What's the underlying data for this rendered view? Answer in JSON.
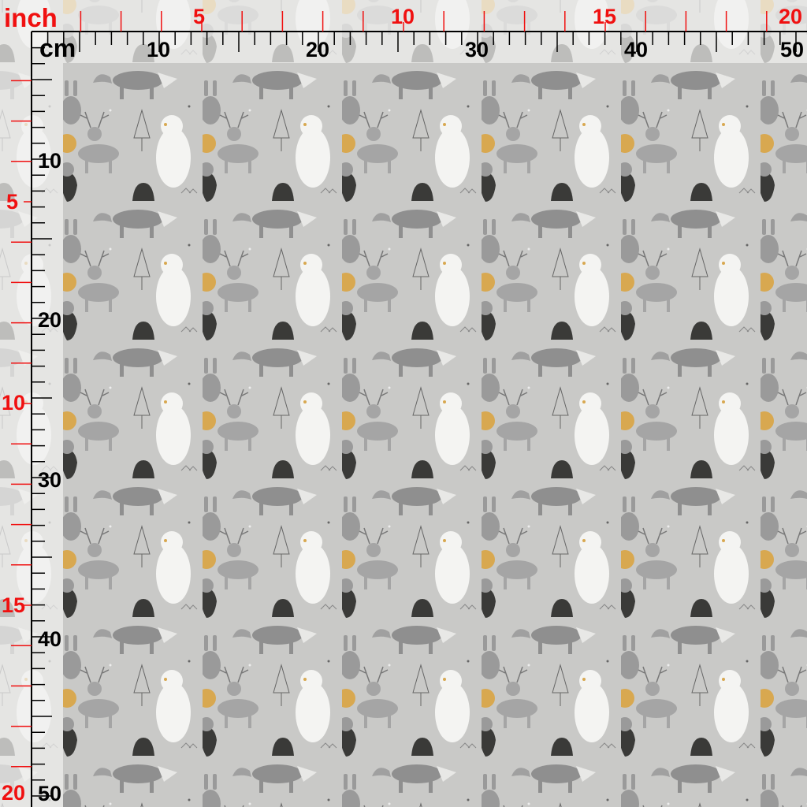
{
  "rulers": {
    "inch_unit": "inch",
    "cm_unit": "cm",
    "top_inch_labels": [
      "5",
      "10",
      "15",
      "20"
    ],
    "top_cm_labels": [
      "10",
      "20",
      "30",
      "40",
      "50"
    ],
    "left_inch_labels": [
      "5",
      "10",
      "15",
      "20"
    ],
    "left_cm_labels": [
      "10",
      "20",
      "30",
      "40",
      "50"
    ],
    "colors": {
      "inch": "#f01010",
      "cm": "#000000"
    }
  },
  "fabric": {
    "motif": "woodland animals: fox, rabbit, deer, polar bear, owl, trees, gold leaves, dark hills",
    "colors": {
      "background": "#c9c9c7",
      "gray": "#8f8f8f",
      "white": "#f4f4f2",
      "dark": "#3a3a38",
      "gold": "#d8a850"
    }
  }
}
